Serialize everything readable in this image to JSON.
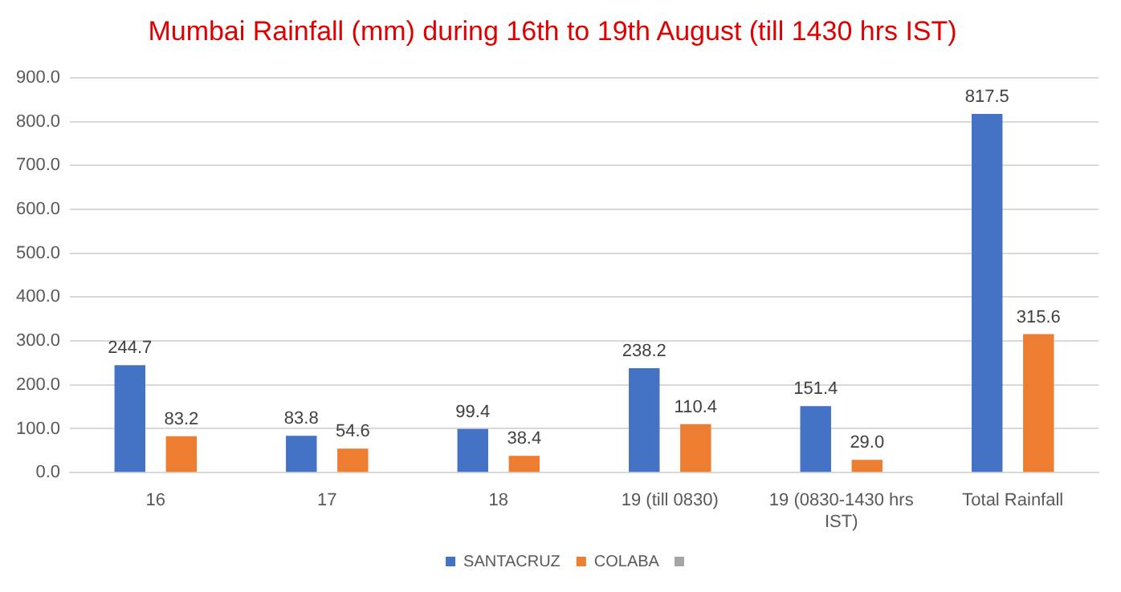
{
  "chart_data": {
    "type": "bar",
    "title": "Mumbai Rainfall (mm) during 16th to 19th August (till 1430 hrs IST)",
    "categories": [
      "16",
      "17",
      "18",
      "19 (till 0830)",
      "19 (0830-1430 hrs IST)",
      "Total Rainfall"
    ],
    "series": [
      {
        "name": "SANTACRUZ",
        "color": "#4472c4",
        "values": [
          244.7,
          83.8,
          99.4,
          238.2,
          151.4,
          817.5
        ],
        "value_labels": [
          "244.7",
          "83.8",
          "99.4",
          "238.2",
          "151.4",
          "817.5"
        ]
      },
      {
        "name": "COLABA",
        "color": "#ed7d31",
        "values": [
          83.2,
          54.6,
          38.4,
          110.4,
          29.0,
          315.6
        ],
        "value_labels": [
          "83.2",
          "54.6",
          "38.4",
          "110.4",
          "29.0",
          "315.6"
        ]
      }
    ],
    "ylim": [
      0,
      900
    ],
    "yticks": [
      {
        "value": 0,
        "label": "0.0"
      },
      {
        "value": 100,
        "label": "100.0"
      },
      {
        "value": 200,
        "label": "200.0"
      },
      {
        "value": 300,
        "label": "300.0"
      },
      {
        "value": 400,
        "label": "400.0"
      },
      {
        "value": 500,
        "label": "500.0"
      },
      {
        "value": 600,
        "label": "600.0"
      },
      {
        "value": 700,
        "label": "700.0"
      },
      {
        "value": 800,
        "label": "800.0"
      },
      {
        "value": 900,
        "label": "900.0"
      }
    ],
    "grid": "y",
    "legend": "bottom"
  }
}
